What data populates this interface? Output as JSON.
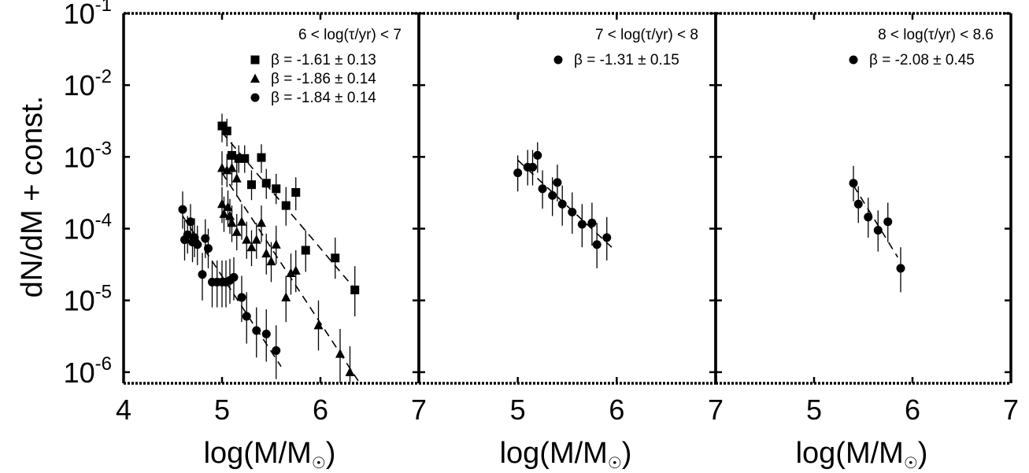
{
  "chart_data": {
    "type": "scatter",
    "y_axis": {
      "label": "dN/dM + const.",
      "scale": "log",
      "ylim": [
        7e-07,
        0.1
      ],
      "tick_values": [
        1e-06,
        1e-05,
        0.0001,
        0.001,
        0.01,
        0.1
      ],
      "tick_exponents": [
        "-6",
        "-5",
        "-4",
        "-3",
        "-2",
        "-1"
      ],
      "tick_base": "10"
    },
    "panels": [
      {
        "title": "6 < log(τ/yr) < 7",
        "xlabel_main": "log(M/M",
        "xlabel_sub": "☉",
        "xlabel_close": ")",
        "xlim": [
          4,
          7
        ],
        "x_ticks": [
          "4",
          "5",
          "6",
          "7"
        ],
        "series": [
          {
            "marker": "square",
            "label": "β = -1.61 ± 0.13",
            "points": [
              {
                "x": 5.0,
                "y": 0.0027,
                "lo": 0.0016,
                "hi": 0.004
              },
              {
                "x": 5.05,
                "y": 0.0023,
                "lo": 0.0014,
                "hi": 0.0034
              },
              {
                "x": 5.1,
                "y": 0.00105,
                "lo": 0.00065,
                "hi": 0.0016
              },
              {
                "x": 5.17,
                "y": 0.00095,
                "lo": 0.0006,
                "hi": 0.00145
              },
              {
                "x": 5.23,
                "y": 0.00095,
                "lo": 0.0006,
                "hi": 0.00145
              },
              {
                "x": 5.3,
                "y": 0.00041,
                "lo": 0.00025,
                "hi": 0.00065
              },
              {
                "x": 5.4,
                "y": 0.00098,
                "lo": 0.0006,
                "hi": 0.0015
              },
              {
                "x": 5.45,
                "y": 0.00043,
                "lo": 0.00026,
                "hi": 0.00068
              },
              {
                "x": 5.55,
                "y": 0.00036,
                "lo": 0.00022,
                "hi": 0.00058
              },
              {
                "x": 5.65,
                "y": 0.00021,
                "lo": 0.00011,
                "hi": 0.00038
              },
              {
                "x": 5.75,
                "y": 0.00032,
                "lo": 0.00018,
                "hi": 0.00052
              },
              {
                "x": 5.85,
                "y": 5e-05,
                "lo": 2.5e-05,
                "hi": 9.5e-05
              },
              {
                "x": 6.15,
                "y": 3.9e-05,
                "lo": 2e-05,
                "hi": 7.5e-05
              },
              {
                "x": 6.35,
                "y": 1.4e-05,
                "lo": 6e-06,
                "hi": 3e-05
              }
            ],
            "fit": {
              "x": [
                5.0,
                6.4
              ],
              "y": [
                0.0022,
                1.2e-05
              ]
            }
          },
          {
            "marker": "triangle",
            "label": "β = -1.86 ± 0.14",
            "points": [
              {
                "x": 5.0,
                "y": 0.0007,
                "lo": 0.0004,
                "hi": 0.0012
              },
              {
                "x": 5.05,
                "y": 0.00065,
                "lo": 0.00038,
                "hi": 0.0011
              },
              {
                "x": 5.1,
                "y": 0.0007,
                "lo": 0.0004,
                "hi": 0.00115
              },
              {
                "x": 5.15,
                "y": 0.0005,
                "lo": 0.00028,
                "hi": 0.00085
              },
              {
                "x": 5.0,
                "y": 0.00022,
                "lo": 0.00012,
                "hi": 0.00038
              },
              {
                "x": 5.02,
                "y": 0.00016,
                "lo": 9e-05,
                "hi": 0.00028
              },
              {
                "x": 5.06,
                "y": 0.0002,
                "lo": 0.00011,
                "hi": 0.00034
              },
              {
                "x": 5.08,
                "y": 0.00015,
                "lo": 8.5e-05,
                "hi": 0.00026
              },
              {
                "x": 5.1,
                "y": 0.00012,
                "lo": 6.5e-05,
                "hi": 0.00021
              },
              {
                "x": 5.15,
                "y": 9e-05,
                "lo": 5e-05,
                "hi": 0.00016
              },
              {
                "x": 5.2,
                "y": 0.000125,
                "lo": 7e-05,
                "hi": 0.00022
              },
              {
                "x": 5.25,
                "y": 7e-05,
                "lo": 3.8e-05,
                "hi": 0.000125
              },
              {
                "x": 5.3,
                "y": 5.5e-05,
                "lo": 3e-05,
                "hi": 9.5e-05
              },
              {
                "x": 5.35,
                "y": 7e-05,
                "lo": 3.8e-05,
                "hi": 0.00012
              },
              {
                "x": 5.4,
                "y": 0.00012,
                "lo": 6.5e-05,
                "hi": 0.00021
              },
              {
                "x": 5.45,
                "y": 4.5e-05,
                "lo": 2.3e-05,
                "hi": 8.5e-05
              },
              {
                "x": 5.5,
                "y": 3.5e-05,
                "lo": 1.8e-05,
                "hi": 6.5e-05
              },
              {
                "x": 5.55,
                "y": 6e-05,
                "lo": 3.2e-05,
                "hi": 0.00011
              },
              {
                "x": 5.65,
                "y": 1.1e-05,
                "lo": 5e-06,
                "hi": 2.2e-05
              },
              {
                "x": 5.7,
                "y": 2.4e-05,
                "lo": 1.2e-05,
                "hi": 4.5e-05
              },
              {
                "x": 5.75,
                "y": 2.6e-05,
                "lo": 1.3e-05,
                "hi": 5e-05
              },
              {
                "x": 5.98,
                "y": 4.5e-06,
                "lo": 2e-06,
                "hi": 1e-05
              },
              {
                "x": 6.2,
                "y": 1.8e-06,
                "lo": 7e-07,
                "hi": 4e-06
              },
              {
                "x": 6.3,
                "y": 1e-06,
                "lo": 7e-07,
                "hi": 2.3e-06
              }
            ],
            "fit": {
              "x": [
                5.0,
                6.4
              ],
              "y": [
                0.0006,
                7e-07
              ]
            }
          },
          {
            "marker": "circle",
            "label": "β = -1.84 ± 0.14",
            "points": [
              {
                "x": 4.6,
                "y": 0.000185,
                "lo": 0.0001,
                "hi": 0.00033
              },
              {
                "x": 4.62,
                "y": 7e-05,
                "lo": 3.6e-05,
                "hi": 0.00013
              },
              {
                "x": 4.65,
                "y": 8.2e-05,
                "lo": 4.5e-05,
                "hi": 0.00015
              },
              {
                "x": 4.68,
                "y": 0.000125,
                "lo": 6.8e-05,
                "hi": 0.00022
              },
              {
                "x": 4.7,
                "y": 6.5e-05,
                "lo": 3.4e-05,
                "hi": 0.00012
              },
              {
                "x": 4.72,
                "y": 7.5e-05,
                "lo": 4e-05,
                "hi": 0.00014
              },
              {
                "x": 4.75,
                "y": 6e-05,
                "lo": 3.1e-05,
                "hi": 0.00011
              },
              {
                "x": 4.8,
                "y": 2.3e-05,
                "lo": 1e-05,
                "hi": 4.6e-05
              },
              {
                "x": 4.83,
                "y": 7.3e-05,
                "lo": 3.9e-05,
                "hi": 0.000135
              },
              {
                "x": 4.86,
                "y": 5.3e-05,
                "lo": 2.8e-05,
                "hi": 0.0001
              },
              {
                "x": 4.9,
                "y": 1.8e-05,
                "lo": 8e-06,
                "hi": 3.6e-05
              },
              {
                "x": 4.95,
                "y": 1.8e-05,
                "lo": 8e-06,
                "hi": 3.6e-05
              },
              {
                "x": 5.0,
                "y": 1.8e-05,
                "lo": 8e-06,
                "hi": 3.6e-05
              },
              {
                "x": 5.04,
                "y": 1.8e-05,
                "lo": 8e-06,
                "hi": 3.6e-05
              },
              {
                "x": 5.08,
                "y": 1.9e-05,
                "lo": 9e-06,
                "hi": 3.8e-05
              },
              {
                "x": 5.12,
                "y": 2.1e-05,
                "lo": 1e-05,
                "hi": 4e-05
              },
              {
                "x": 5.2,
                "y": 1.1e-05,
                "lo": 5e-06,
                "hi": 2.2e-05
              },
              {
                "x": 5.25,
                "y": 6e-06,
                "lo": 2.5e-06,
                "hi": 1.3e-05
              },
              {
                "x": 5.35,
                "y": 3.8e-06,
                "lo": 1.6e-06,
                "hi": 8e-06
              },
              {
                "x": 5.45,
                "y": 3.4e-06,
                "lo": 1.4e-06,
                "hi": 7.5e-06
              },
              {
                "x": 5.55,
                "y": 2e-06,
                "lo": 8e-07,
                "hi": 4.5e-06
              }
            ],
            "fit": {
              "x": [
                4.6,
                5.6
              ],
              "y": [
                0.00015,
                1.2e-06
              ]
            }
          }
        ]
      },
      {
        "title": "7 < log(τ/yr) < 8",
        "xlabel_main": "log(M/M",
        "xlabel_sub": "☉",
        "xlabel_close": ")",
        "xlim": [
          4,
          7
        ],
        "x_ticks": [
          "",
          "5",
          "6",
          "7"
        ],
        "series": [
          {
            "marker": "circle",
            "label": "β = -1.31 ± 0.15",
            "points": [
              {
                "x": 5.0,
                "y": 0.0006,
                "lo": 0.00033,
                "hi": 0.00105
              },
              {
                "x": 5.1,
                "y": 0.00072,
                "lo": 0.0004,
                "hi": 0.00125
              },
              {
                "x": 5.15,
                "y": 0.00072,
                "lo": 0.0004,
                "hi": 0.00125
              },
              {
                "x": 5.2,
                "y": 0.00105,
                "lo": 0.0006,
                "hi": 0.0016
              },
              {
                "x": 5.25,
                "y": 0.00036,
                "lo": 0.00019,
                "hi": 0.00065
              },
              {
                "x": 5.35,
                "y": 0.00029,
                "lo": 0.00015,
                "hi": 0.00052
              },
              {
                "x": 5.4,
                "y": 0.00044,
                "lo": 0.00024,
                "hi": 0.00078
              },
              {
                "x": 5.45,
                "y": 0.00022,
                "lo": 0.00011,
                "hi": 0.0004
              },
              {
                "x": 5.55,
                "y": 0.00017,
                "lo": 8.5e-05,
                "hi": 0.00032
              },
              {
                "x": 5.65,
                "y": 0.000115,
                "lo": 5.5e-05,
                "hi": 0.00022
              },
              {
                "x": 5.75,
                "y": 0.00012,
                "lo": 5.8e-05,
                "hi": 0.00023
              },
              {
                "x": 5.8,
                "y": 6e-05,
                "lo": 2.8e-05,
                "hi": 0.00012
              },
              {
                "x": 5.9,
                "y": 7.5e-05,
                "lo": 3.6e-05,
                "hi": 0.000145
              }
            ],
            "fit": {
              "x": [
                5.0,
                5.95
              ],
              "y": [
                0.0009,
                5.5e-05
              ]
            }
          }
        ]
      },
      {
        "title": "8 < log(τ/yr) < 8.6",
        "xlabel_main": "log(M/M",
        "xlabel_sub": "☉",
        "xlabel_close": ")",
        "xlim": [
          4,
          7
        ],
        "x_ticks": [
          "",
          "5",
          "6",
          "7"
        ],
        "series": [
          {
            "marker": "circle",
            "label": "β = -2.08 ± 0.45",
            "points": [
              {
                "x": 5.4,
                "y": 0.00043,
                "lo": 0.00024,
                "hi": 0.00075
              },
              {
                "x": 5.45,
                "y": 0.00022,
                "lo": 0.00012,
                "hi": 0.00039
              },
              {
                "x": 5.55,
                "y": 0.000145,
                "lo": 7.5e-05,
                "hi": 0.00027
              },
              {
                "x": 5.65,
                "y": 9.5e-05,
                "lo": 4.8e-05,
                "hi": 0.00018
              },
              {
                "x": 5.75,
                "y": 0.000125,
                "lo": 6.5e-05,
                "hi": 0.00023
              },
              {
                "x": 5.88,
                "y": 2.8e-05,
                "lo": 1.3e-05,
                "hi": 5.5e-05
              }
            ],
            "fit": {
              "x": [
                5.4,
                5.85
              ],
              "y": [
                0.0004,
                4e-05
              ]
            }
          }
        ]
      }
    ]
  }
}
